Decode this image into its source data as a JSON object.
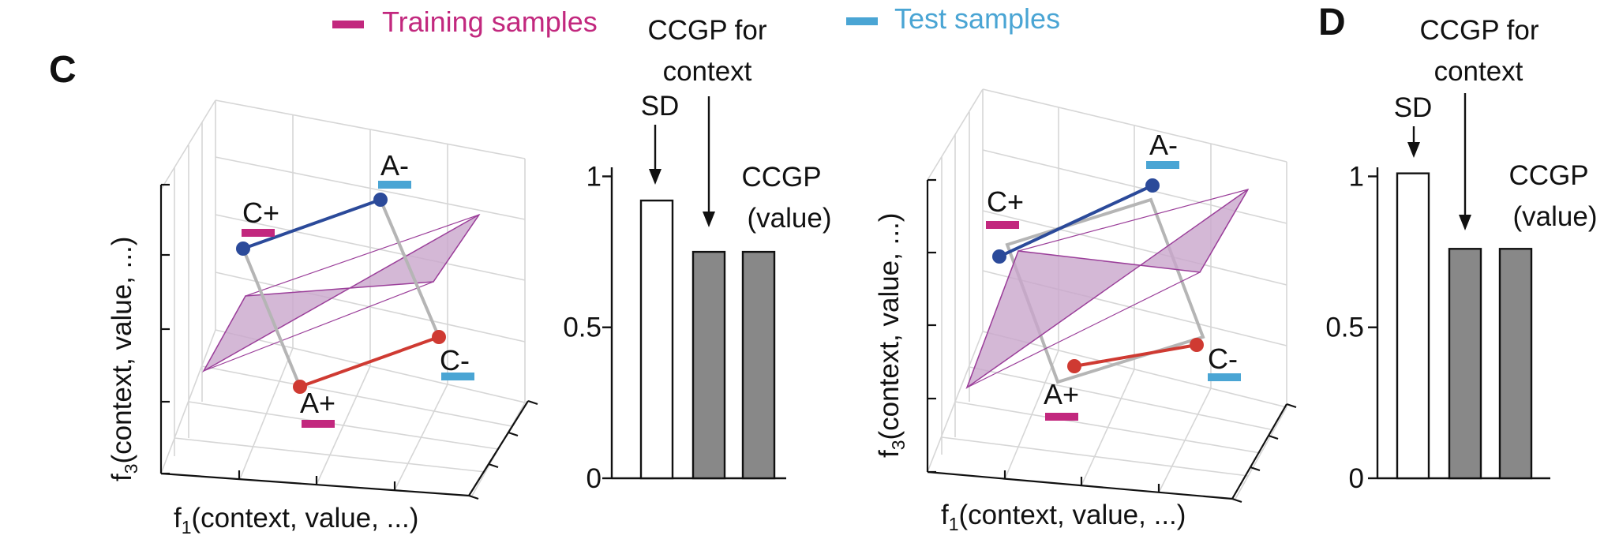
{
  "legend": {
    "training": {
      "label": "Training samples",
      "color": "#c2287e"
    },
    "test": {
      "label": "Test samples",
      "color": "#4aa5d4"
    }
  },
  "panels": {
    "C": "C",
    "D": "D"
  },
  "scatter_labels": {
    "x_axis": "f",
    "x_sub": "1",
    "x_rest": "(context, value, ...)",
    "y_axis": "f",
    "y_sub": "3",
    "y_rest": "(context, value, ...)",
    "points": [
      "A-",
      "C+",
      "C-",
      "A+"
    ]
  },
  "colors": {
    "blue_line": "#2b4a9a",
    "red_line": "#cf3a32",
    "plane_fill": "#c9a6cc",
    "plane_edge": "#9b3f9a",
    "bar_gray": "#888888"
  },
  "annotations": {
    "sd": "SD",
    "ccgp_context_line1": "CCGP for",
    "ccgp_context_line2": "context",
    "ccgp_value_line1": "CCGP",
    "ccgp_value_line2": "(value)"
  },
  "chart_data": [
    {
      "type": "bar",
      "panel": "C",
      "categories": [
        "SD",
        "CCGP for context",
        "CCGP (value)"
      ],
      "values": [
        0.92,
        0.75,
        0.75
      ],
      "fills": [
        "white",
        "gray",
        "gray"
      ],
      "ylim": [
        0,
        1.03
      ],
      "yticks": [
        0,
        0.5,
        1
      ],
      "ytick_labels": [
        "0",
        "0.5",
        "1"
      ]
    },
    {
      "type": "bar",
      "panel": "D",
      "categories": [
        "SD",
        "CCGP for context",
        "CCGP (value)"
      ],
      "values": [
        1.01,
        0.76,
        0.76
      ],
      "fills": [
        "white",
        "gray",
        "gray"
      ],
      "ylim": [
        0,
        1.03
      ],
      "yticks": [
        0,
        0.5,
        1
      ],
      "ytick_labels": [
        "0",
        "0.5",
        "1"
      ]
    }
  ]
}
